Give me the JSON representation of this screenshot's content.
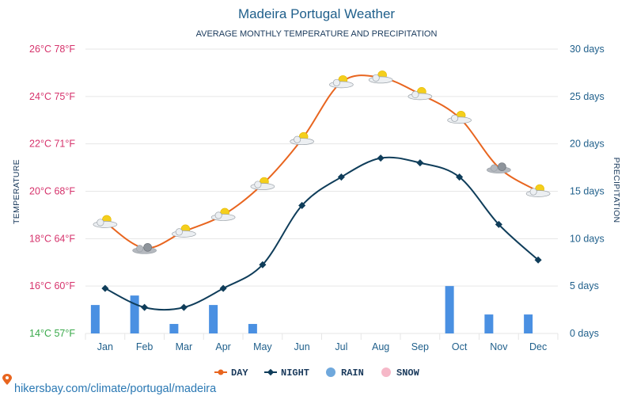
{
  "colors": {
    "day": "#e8651f",
    "night": "#0f3d5a",
    "rain": "#4a90e2",
    "rain_legend": "#6fa8dc",
    "snow": "#f6b8c8",
    "left_ticks": [
      "#d6336c",
      "#d6336c",
      "#d6336c",
      "#d6336c",
      "#d6336c",
      "#d6336c",
      "#39a94a"
    ],
    "grid": "#e6e6e6",
    "text": "#1f5f8b"
  },
  "chart_data": {
    "type": "line",
    "title": "Madeira Portugal Weather",
    "subtitle": "AVERAGE MONTHLY TEMPERATURE AND PRECIPITATION",
    "ylabel": "TEMPERATURE",
    "y2label": "PRECIPITATION",
    "categories": [
      "Jan",
      "Feb",
      "Mar",
      "Apr",
      "May",
      "Jun",
      "Jul",
      "Aug",
      "Sep",
      "Oct",
      "Nov",
      "Dec"
    ],
    "ylim": [
      14,
      26
    ],
    "y2lim": [
      0,
      30
    ],
    "yticks": [
      "26°C 78°F",
      "24°C 75°F",
      "22°C 71°F",
      "20°C 68°F",
      "18°C 64°F",
      "16°C 60°F",
      "14°C 57°F"
    ],
    "y2ticks": [
      "30 days",
      "25 days",
      "20 days",
      "15 days",
      "10 days",
      "5 days",
      "0 days"
    ],
    "grid": true,
    "series": [
      {
        "name": "DAY",
        "axis": "temperature",
        "values": [
          18.7,
          17.6,
          18.3,
          19.0,
          20.3,
          22.2,
          24.6,
          24.8,
          24.1,
          23.1,
          21.0,
          20.0
        ]
      },
      {
        "name": "NIGHT",
        "axis": "temperature",
        "values": [
          15.9,
          15.1,
          15.1,
          15.9,
          16.9,
          19.4,
          20.6,
          21.4,
          21.2,
          20.6,
          18.6,
          17.1
        ]
      },
      {
        "name": "RAIN",
        "axis": "precipitation",
        "unit": "days",
        "values": [
          3,
          4,
          1,
          3,
          1,
          0,
          0,
          0,
          0,
          5,
          2,
          2
        ]
      },
      {
        "name": "SNOW",
        "axis": "precipitation",
        "unit": "days",
        "values": [
          0,
          0,
          0,
          0,
          0,
          0,
          0,
          0,
          0,
          0,
          0,
          0
        ]
      }
    ],
    "icons": [
      "partly-cloudy",
      "cloudy",
      "partly-cloudy",
      "partly-cloudy",
      "partly-cloudy",
      "partly-cloudy",
      "partly-cloudy",
      "partly-cloudy",
      "partly-cloudy",
      "partly-cloudy",
      "cloudy",
      "partly-cloudy"
    ],
    "legend": [
      "DAY",
      "NIGHT",
      "RAIN",
      "SNOW"
    ],
    "legend_position": "bottom"
  },
  "footer": {
    "source": "hikersbay.com/climate/portugal/madeira",
    "icon": "map-pin-icon"
  }
}
